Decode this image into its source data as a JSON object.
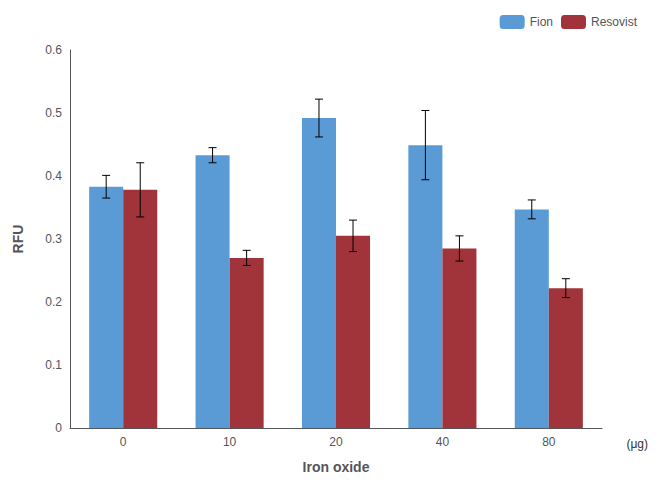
{
  "chart_data": {
    "type": "bar",
    "categories": [
      "0",
      "10",
      "20",
      "40",
      "80"
    ],
    "series": [
      {
        "name": "Fion",
        "color": "#5b9bd5",
        "values": [
          0.383,
          0.433,
          0.492,
          0.449,
          0.347
        ],
        "errors": [
          0.018,
          0.012,
          0.03,
          0.055,
          0.015
        ]
      },
      {
        "name": "Resovist",
        "color": "#a0343a",
        "values": [
          0.378,
          0.27,
          0.305,
          0.285,
          0.222
        ],
        "errors": [
          0.043,
          0.012,
          0.025,
          0.02,
          0.015
        ]
      }
    ],
    "xlabel": "Iron oxide",
    "ylabel": "RFU",
    "annotation": "(μg)",
    "ylim": [
      0,
      0.6
    ],
    "yticks": [
      0,
      0.1,
      0.2,
      0.3,
      0.4,
      0.5,
      0.6
    ],
    "grid": false,
    "legend": "upper right"
  }
}
